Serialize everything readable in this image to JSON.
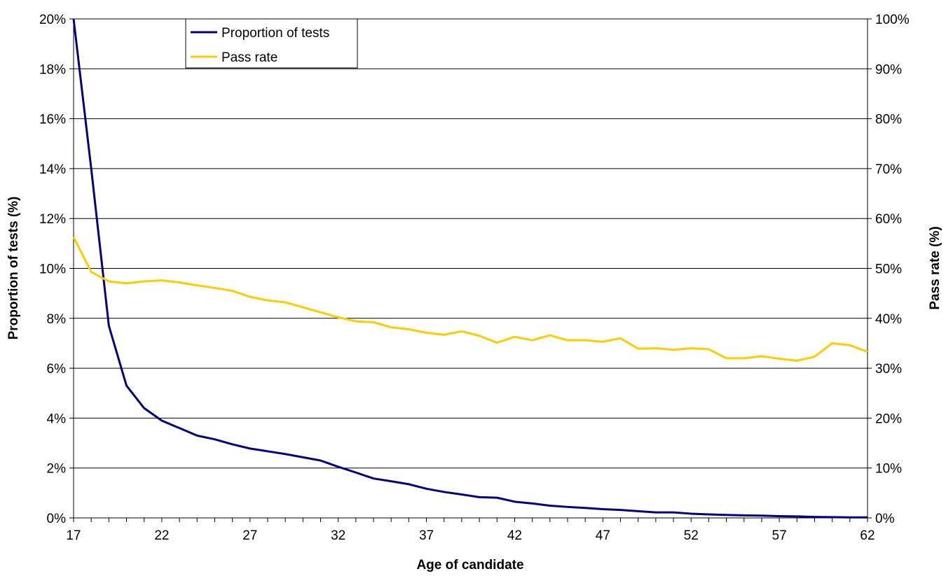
{
  "chart_data": {
    "type": "line",
    "xlabel": "Age of candidate",
    "ylabel": "Proportion of tests (%)",
    "y2label": "Pass rate (%)",
    "xlim": [
      17,
      62
    ],
    "ylim": [
      0,
      20
    ],
    "y2lim": [
      0,
      100
    ],
    "x_ticks": [
      "17",
      "22",
      "27",
      "32",
      "37",
      "42",
      "47",
      "52",
      "57",
      "62"
    ],
    "y_ticks": [
      "0%",
      "2%",
      "4%",
      "6%",
      "8%",
      "10%",
      "12%",
      "14%",
      "16%",
      "18%",
      "20%"
    ],
    "y2_ticks": [
      "0%",
      "10%",
      "20%",
      "30%",
      "40%",
      "50%",
      "60%",
      "70%",
      "80%",
      "90%",
      "100%"
    ],
    "grid": true,
    "legend_position": "top-left",
    "x": [
      17,
      18,
      19,
      20,
      21,
      22,
      23,
      24,
      25,
      26,
      27,
      28,
      29,
      30,
      31,
      32,
      33,
      34,
      35,
      36,
      37,
      38,
      39,
      40,
      41,
      42,
      43,
      44,
      45,
      46,
      47,
      48,
      49,
      50,
      51,
      52,
      53,
      54,
      55,
      56,
      57,
      58,
      59,
      60,
      61,
      62
    ],
    "series": [
      {
        "name": "Proportion of tests",
        "axis": "left",
        "color": "#000080",
        "values": [
          20.0,
          14.0,
          7.7,
          5.3,
          4.4,
          3.9,
          3.6,
          3.3,
          3.15,
          2.95,
          2.78,
          2.67,
          2.56,
          2.43,
          2.3,
          2.05,
          1.82,
          1.58,
          1.47,
          1.35,
          1.17,
          1.04,
          0.94,
          0.83,
          0.81,
          0.65,
          0.58,
          0.49,
          0.44,
          0.4,
          0.35,
          0.32,
          0.27,
          0.22,
          0.22,
          0.17,
          0.14,
          0.12,
          0.1,
          0.09,
          0.07,
          0.06,
          0.04,
          0.03,
          0.02,
          0.02
        ]
      },
      {
        "name": "Pass rate",
        "axis": "right",
        "color": "#FFCC00",
        "values": [
          56.3,
          49.3,
          47.4,
          47.0,
          47.4,
          47.6,
          47.2,
          46.6,
          46.1,
          45.5,
          44.3,
          43.6,
          43.2,
          42.2,
          41.2,
          40.2,
          39.4,
          39.2,
          38.2,
          37.8,
          37.1,
          36.7,
          37.4,
          36.5,
          35.1,
          36.3,
          35.6,
          36.6,
          35.6,
          35.6,
          35.3,
          36.0,
          33.9,
          34.0,
          33.7,
          34.0,
          33.8,
          32.0,
          32.0,
          32.4,
          31.9,
          31.5,
          32.3,
          35.0,
          34.6,
          33.3
        ]
      }
    ]
  }
}
